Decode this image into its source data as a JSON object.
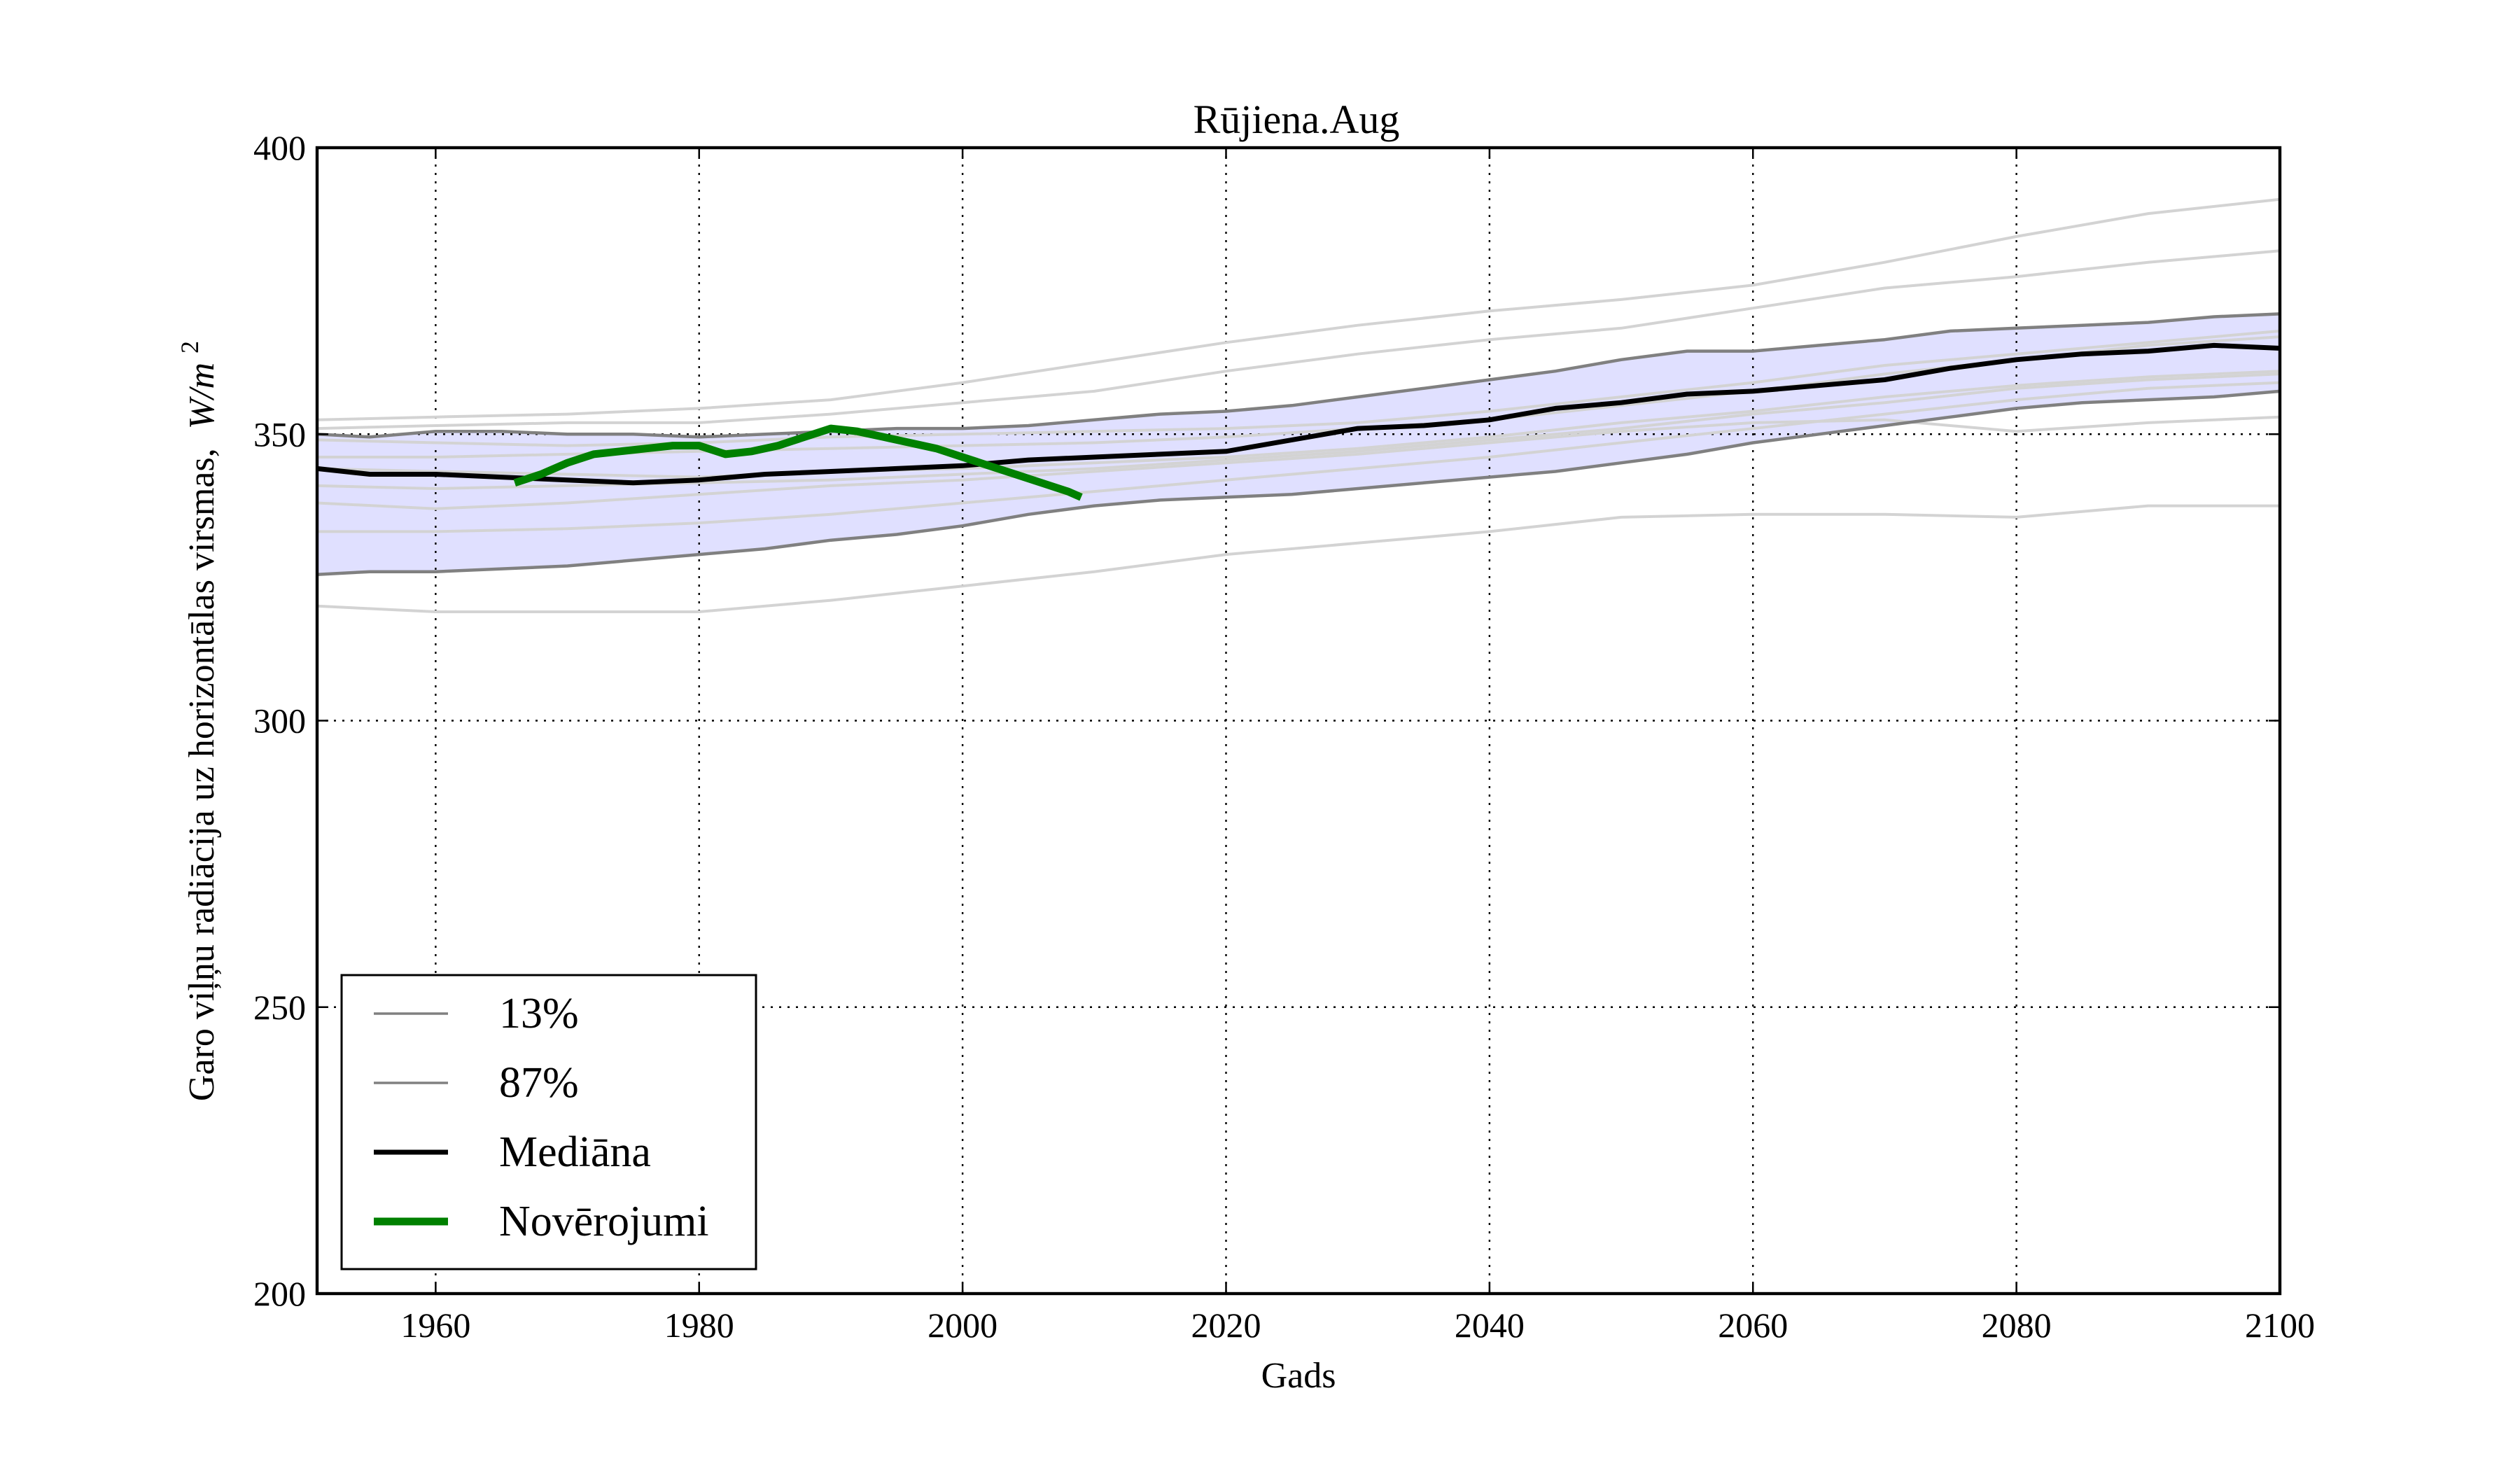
{
  "chart_data": {
    "type": "line",
    "title": "Rūjiena.Aug",
    "xlabel": "Gads",
    "ylabel_text": "Garo viļņu radiācija uz horizontālas virsmas,",
    "ylabel_unit_base": "W/m",
    "ylabel_unit_exp": "2",
    "xlim": [
      1951,
      2100
    ],
    "ylim": [
      200,
      400
    ],
    "x_ticks": [
      1960,
      1980,
      2000,
      2020,
      2040,
      2060,
      2080,
      2100
    ],
    "y_ticks": [
      200,
      250,
      300,
      350,
      400
    ],
    "grid": true,
    "legend_position": "lower-left",
    "legend": [
      {
        "label": "13%",
        "color": "#808080",
        "style": "thin"
      },
      {
        "label": "87%",
        "color": "#808080",
        "style": "thin"
      },
      {
        "label": "Mediāna",
        "color": "#000000",
        "style": "thick"
      },
      {
        "label": "Novērojumi",
        "color": "#008000",
        "style": "thicker"
      }
    ],
    "band": {
      "fill": "#e0e0ff",
      "lower": {
        "color": "#808080",
        "x": [
          1951,
          1955,
          1960,
          1965,
          1970,
          1975,
          1980,
          1985,
          1990,
          1995,
          2000,
          2005,
          2010,
          2015,
          2020,
          2025,
          2030,
          2035,
          2040,
          2045,
          2050,
          2055,
          2060,
          2065,
          2070,
          2075,
          2080,
          2085,
          2090,
          2095,
          2100
        ],
        "values": [
          325.5,
          326,
          326,
          326.5,
          327,
          328,
          329,
          330,
          331.5,
          332.5,
          334,
          336,
          337.5,
          338.5,
          339,
          339.5,
          340.5,
          341.5,
          342.5,
          343.5,
          345,
          346.5,
          348.5,
          350,
          351.5,
          353,
          354.5,
          355.5,
          356,
          356.5,
          357.5
        ]
      },
      "upper": {
        "color": "#808080",
        "x": [
          1951,
          1955,
          1960,
          1965,
          1970,
          1975,
          1980,
          1985,
          1990,
          1995,
          2000,
          2005,
          2010,
          2015,
          2020,
          2025,
          2030,
          2035,
          2040,
          2045,
          2050,
          2055,
          2060,
          2065,
          2070,
          2075,
          2080,
          2085,
          2090,
          2095,
          2100
        ],
        "values": [
          350,
          349.5,
          350.5,
          350.5,
          350,
          350,
          349.5,
          350,
          350.5,
          351,
          351,
          351.5,
          352.5,
          353.5,
          354,
          355,
          356.5,
          358,
          359.5,
          361,
          363,
          364.5,
          364.5,
          365.5,
          366.5,
          368,
          368.5,
          369,
          369.5,
          370.5,
          371
        ]
      }
    },
    "ensemble": {
      "color": "#d3d3d3",
      "x": [
        1951,
        1960,
        1970,
        1980,
        1990,
        2000,
        2010,
        2020,
        2030,
        2040,
        2050,
        2060,
        2070,
        2080,
        2090,
        2100
      ],
      "members": [
        [
          320,
          319,
          319,
          319,
          321,
          323.5,
          326,
          329,
          331,
          333,
          335.5,
          336,
          336,
          335.5,
          337.5,
          337.5
        ],
        [
          352.5,
          353,
          353.5,
          354.5,
          356,
          359,
          362.5,
          366,
          369,
          371.5,
          373.5,
          376,
          380,
          384.5,
          388.5,
          391
        ],
        [
          351,
          351.5,
          352,
          352,
          353.5,
          355.5,
          357.5,
          361,
          364,
          366.5,
          368.5,
          372,
          375.5,
          377.5,
          380,
          382
        ],
        [
          338,
          337,
          338,
          339.5,
          341,
          342,
          343.5,
          345,
          346.5,
          348.5,
          350.5,
          352,
          352.5,
          350.5,
          352,
          353
        ],
        [
          344,
          343.5,
          343,
          342.5,
          343.5,
          344,
          345,
          346,
          347.5,
          349.5,
          352,
          354,
          356.5,
          358.5,
          360,
          361
        ],
        [
          341,
          340.5,
          341,
          341.5,
          342,
          343,
          344,
          345.5,
          347,
          349,
          351,
          353.5,
          355.5,
          358,
          359.5,
          360.5
        ],
        [
          333,
          333,
          333.5,
          334.5,
          336,
          338,
          340,
          342,
          344,
          346,
          348.5,
          351,
          353.5,
          356,
          358,
          359
        ],
        [
          346,
          346,
          346.5,
          347,
          347.5,
          348,
          348.5,
          349.5,
          351,
          352.5,
          355,
          357.5,
          360.5,
          363,
          365.5,
          367
        ],
        [
          349,
          348.5,
          348,
          348.5,
          349.5,
          350,
          350.5,
          351,
          352,
          354,
          356.5,
          359,
          362,
          364,
          366,
          368
        ]
      ]
    },
    "series": [
      {
        "name": "Mediāna",
        "color": "#000000",
        "x": [
          1951,
          1955,
          1960,
          1965,
          1970,
          1975,
          1980,
          1985,
          1990,
          1995,
          2000,
          2005,
          2010,
          2015,
          2020,
          2025,
          2030,
          2035,
          2040,
          2045,
          2050,
          2055,
          2060,
          2065,
          2070,
          2075,
          2080,
          2085,
          2090,
          2095,
          2100
        ],
        "values": [
          344,
          343,
          343,
          342.5,
          342,
          341.5,
          342,
          343,
          343.5,
          344,
          344.5,
          345.5,
          346,
          346.5,
          347,
          349,
          351,
          351.5,
          352.5,
          354.5,
          355.5,
          357,
          357.5,
          358.5,
          359.5,
          361.5,
          363,
          364,
          364.5,
          365.5,
          365
        ]
      },
      {
        "name": "Novērojumi",
        "color": "#008000",
        "x": [
          1966,
          1968,
          1970,
          1972,
          1974,
          1976,
          1978,
          1980,
          1982,
          1984,
          1986,
          1988,
          1990,
          1992,
          1994,
          1996,
          1998,
          2000,
          2002,
          2004,
          2006,
          2008,
          2009
        ],
        "values": [
          341.5,
          343,
          345,
          346.5,
          347,
          347.5,
          348,
          348,
          346.5,
          347,
          348,
          349.5,
          351,
          350.5,
          349.5,
          348.5,
          347.5,
          346,
          344.5,
          343,
          341.5,
          340,
          339
        ]
      }
    ]
  }
}
